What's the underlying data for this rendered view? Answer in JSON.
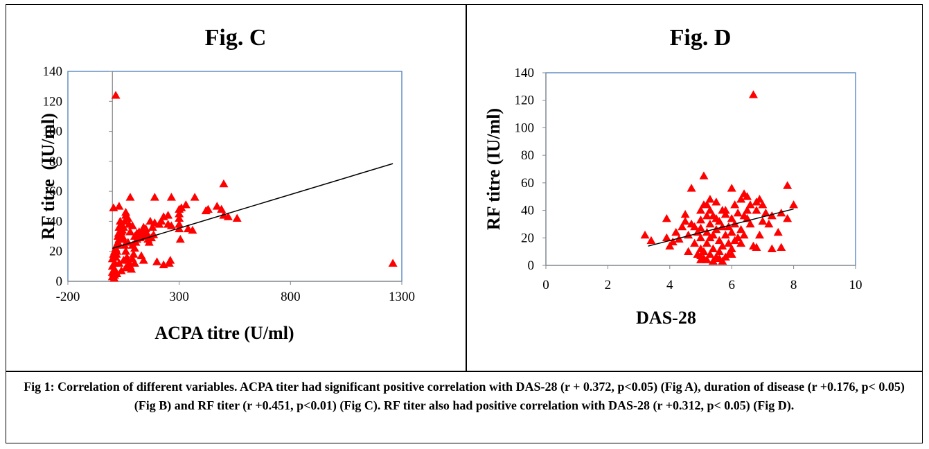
{
  "chart_data": [
    {
      "type": "scatter",
      "title": "Fig. C",
      "xlabel": "ACPA titre (U/ml)",
      "ylabel": "RF titre  (IU/ml)",
      "xlim": [
        -200,
        1300
      ],
      "ylim": [
        0,
        140
      ],
      "xticks": [
        -200,
        300,
        800,
        1300
      ],
      "yticks": [
        0,
        20,
        40,
        60,
        80,
        100,
        120,
        140
      ],
      "grid": false,
      "marker_color": "#ff0000",
      "trendline": {
        "x": [
          0,
          1260
        ],
        "y": [
          22,
          78.5
        ]
      },
      "points": [
        [
          15,
          124
        ],
        [
          5,
          49
        ],
        [
          30,
          50
        ],
        [
          60,
          46
        ],
        [
          80,
          56
        ],
        [
          190,
          56
        ],
        [
          250,
          44
        ],
        [
          265,
          56
        ],
        [
          370,
          56
        ],
        [
          500,
          65
        ],
        [
          560,
          42
        ],
        [
          490,
          48
        ],
        [
          500,
          44
        ],
        [
          520,
          43
        ],
        [
          470,
          50
        ],
        [
          430,
          48
        ],
        [
          420,
          47
        ],
        [
          310,
          49
        ],
        [
          330,
          51
        ],
        [
          300,
          48
        ],
        [
          300,
          45
        ],
        [
          300,
          42
        ],
        [
          300,
          38
        ],
        [
          300,
          35
        ],
        [
          305,
          28
        ],
        [
          340,
          35
        ],
        [
          230,
          43
        ],
        [
          250,
          38
        ],
        [
          265,
          37
        ],
        [
          220,
          40
        ],
        [
          210,
          38
        ],
        [
          190,
          39
        ],
        [
          180,
          36
        ],
        [
          170,
          40
        ],
        [
          150,
          35
        ],
        [
          140,
          36
        ],
        [
          120,
          33
        ],
        [
          110,
          32
        ],
        [
          100,
          30
        ],
        [
          90,
          37
        ],
        [
          80,
          33
        ],
        [
          75,
          38
        ],
        [
          70,
          42
        ],
        [
          60,
          44
        ],
        [
          55,
          40
        ],
        [
          50,
          36
        ],
        [
          45,
          34
        ],
        [
          40,
          33
        ],
        [
          35,
          30
        ],
        [
          30,
          28
        ],
        [
          25,
          26
        ],
        [
          20,
          24
        ],
        [
          15,
          22
        ],
        [
          10,
          20
        ],
        [
          5,
          18
        ],
        [
          0,
          15
        ],
        [
          0,
          10
        ],
        [
          0,
          6
        ],
        [
          0,
          3
        ],
        [
          5,
          5
        ],
        [
          8,
          2
        ],
        [
          10,
          8
        ],
        [
          12,
          12
        ],
        [
          15,
          16
        ],
        [
          18,
          18
        ],
        [
          20,
          20
        ],
        [
          22,
          25
        ],
        [
          25,
          30
        ],
        [
          28,
          32
        ],
        [
          30,
          36
        ],
        [
          35,
          40
        ],
        [
          40,
          38
        ],
        [
          45,
          30
        ],
        [
          50,
          28
        ],
        [
          55,
          24
        ],
        [
          60,
          20
        ],
        [
          65,
          16
        ],
        [
          70,
          14
        ],
        [
          75,
          12
        ],
        [
          80,
          10
        ],
        [
          85,
          8
        ],
        [
          90,
          15
        ],
        [
          95,
          18
        ],
        [
          100,
          22
        ],
        [
          105,
          26
        ],
        [
          110,
          28
        ],
        [
          115,
          30
        ],
        [
          125,
          29
        ],
        [
          130,
          31
        ],
        [
          135,
          33
        ],
        [
          145,
          30
        ],
        [
          155,
          32
        ],
        [
          160,
          28
        ],
        [
          165,
          26
        ],
        [
          175,
          29
        ],
        [
          185,
          31
        ],
        [
          130,
          17
        ],
        [
          140,
          14
        ],
        [
          100,
          12
        ],
        [
          60,
          9
        ],
        [
          40,
          7
        ],
        [
          20,
          5
        ],
        [
          10,
          4
        ],
        [
          30,
          12
        ],
        [
          50,
          14
        ],
        [
          70,
          26
        ],
        [
          90,
          24
        ],
        [
          200,
          13
        ],
        [
          230,
          11
        ],
        [
          255,
          12
        ],
        [
          260,
          14
        ],
        [
          1260,
          12
        ],
        [
          360,
          34
        ]
      ]
    },
    {
      "type": "scatter",
      "title": "Fig. D",
      "xlabel": "DAS-28",
      "ylabel": "RF titre (IU/ml)",
      "xlim": [
        0,
        10
      ],
      "ylim": [
        0,
        140
      ],
      "xticks": [
        0,
        2,
        4,
        6,
        8,
        10
      ],
      "yticks": [
        0,
        20,
        40,
        60,
        80,
        100,
        120,
        140
      ],
      "grid": false,
      "marker_color": "#ff0000",
      "trendline": {
        "x": [
          3.3,
          8.0
        ],
        "y": [
          14,
          41
        ]
      },
      "points": [
        [
          6.7,
          124
        ],
        [
          5.1,
          65
        ],
        [
          4.7,
          56
        ],
        [
          6.0,
          56
        ],
        [
          7.8,
          58
        ],
        [
          8.0,
          44
        ],
        [
          7.8,
          34
        ],
        [
          7.6,
          13
        ],
        [
          7.3,
          12
        ],
        [
          6.8,
          13
        ],
        [
          3.2,
          22
        ],
        [
          3.4,
          18
        ],
        [
          3.9,
          20
        ],
        [
          3.9,
          34
        ],
        [
          4.0,
          14
        ],
        [
          4.1,
          17
        ],
        [
          4.3,
          19
        ],
        [
          4.4,
          28
        ],
        [
          4.5,
          37
        ],
        [
          4.6,
          22
        ],
        [
          4.7,
          30
        ],
        [
          4.8,
          28
        ],
        [
          4.9,
          24
        ],
        [
          5.0,
          40
        ],
        [
          5.0,
          33
        ],
        [
          5.0,
          27
        ],
        [
          5.0,
          20
        ],
        [
          5.0,
          12
        ],
        [
          5.0,
          7
        ],
        [
          5.0,
          4
        ],
        [
          5.1,
          5
        ],
        [
          5.1,
          10
        ],
        [
          5.2,
          16
        ],
        [
          5.2,
          24
        ],
        [
          5.2,
          36
        ],
        [
          5.2,
          44
        ],
        [
          5.3,
          48
        ],
        [
          5.3,
          40
        ],
        [
          5.3,
          30
        ],
        [
          5.3,
          20
        ],
        [
          5.3,
          8
        ],
        [
          5.4,
          3
        ],
        [
          5.4,
          12
        ],
        [
          5.4,
          22
        ],
        [
          5.5,
          34
        ],
        [
          5.5,
          46
        ],
        [
          5.5,
          26
        ],
        [
          5.6,
          18
        ],
        [
          5.6,
          10
        ],
        [
          5.6,
          5
        ],
        [
          5.7,
          3
        ],
        [
          5.7,
          14
        ],
        [
          5.7,
          28
        ],
        [
          5.8,
          40
        ],
        [
          5.8,
          37
        ],
        [
          5.8,
          22
        ],
        [
          5.9,
          16
        ],
        [
          5.9,
          8
        ],
        [
          6.0,
          12
        ],
        [
          6.0,
          24
        ],
        [
          6.0,
          34
        ],
        [
          6.1,
          44
        ],
        [
          6.1,
          30
        ],
        [
          6.2,
          38
        ],
        [
          6.2,
          20
        ],
        [
          6.3,
          26
        ],
        [
          6.3,
          48
        ],
        [
          6.4,
          52
        ],
        [
          6.4,
          36
        ],
        [
          6.5,
          50
        ],
        [
          6.5,
          40
        ],
        [
          6.6,
          30
        ],
        [
          6.6,
          44
        ],
        [
          6.7,
          14
        ],
        [
          6.8,
          40
        ],
        [
          6.9,
          22
        ],
        [
          6.9,
          48
        ],
        [
          7.0,
          32
        ],
        [
          7.0,
          44
        ],
        [
          7.1,
          38
        ],
        [
          7.2,
          30
        ],
        [
          7.3,
          36
        ],
        [
          7.5,
          24
        ],
        [
          7.6,
          38
        ],
        [
          4.2,
          24
        ],
        [
          4.5,
          32
        ],
        [
          4.8,
          16
        ],
        [
          4.9,
          8
        ],
        [
          5.1,
          44
        ],
        [
          5.4,
          36
        ],
        [
          5.6,
          32
        ],
        [
          5.9,
          28
        ],
        [
          6.1,
          18
        ],
        [
          6.4,
          22
        ],
        [
          4.6,
          10
        ],
        [
          5.2,
          4
        ],
        [
          5.5,
          6
        ],
        [
          5.8,
          6
        ],
        [
          6.0,
          8
        ],
        [
          6.3,
          16
        ],
        [
          5.7,
          40
        ],
        [
          6.5,
          34
        ],
        [
          6.8,
          46
        ]
      ]
    }
  ],
  "caption": "Fig 1: Correlation of different variables. ACPA titer had significant positive correlation with DAS-28 (r + 0.372, p<0.05) (Fig A), duration of disease (r +0.176, p< 0.05) (Fig B) and RF titer (r +0.451, p<0.01) (Fig C). RF titer also had positive correlation with DAS-28 (r +0.312, p< 0.05) (Fig D)."
}
